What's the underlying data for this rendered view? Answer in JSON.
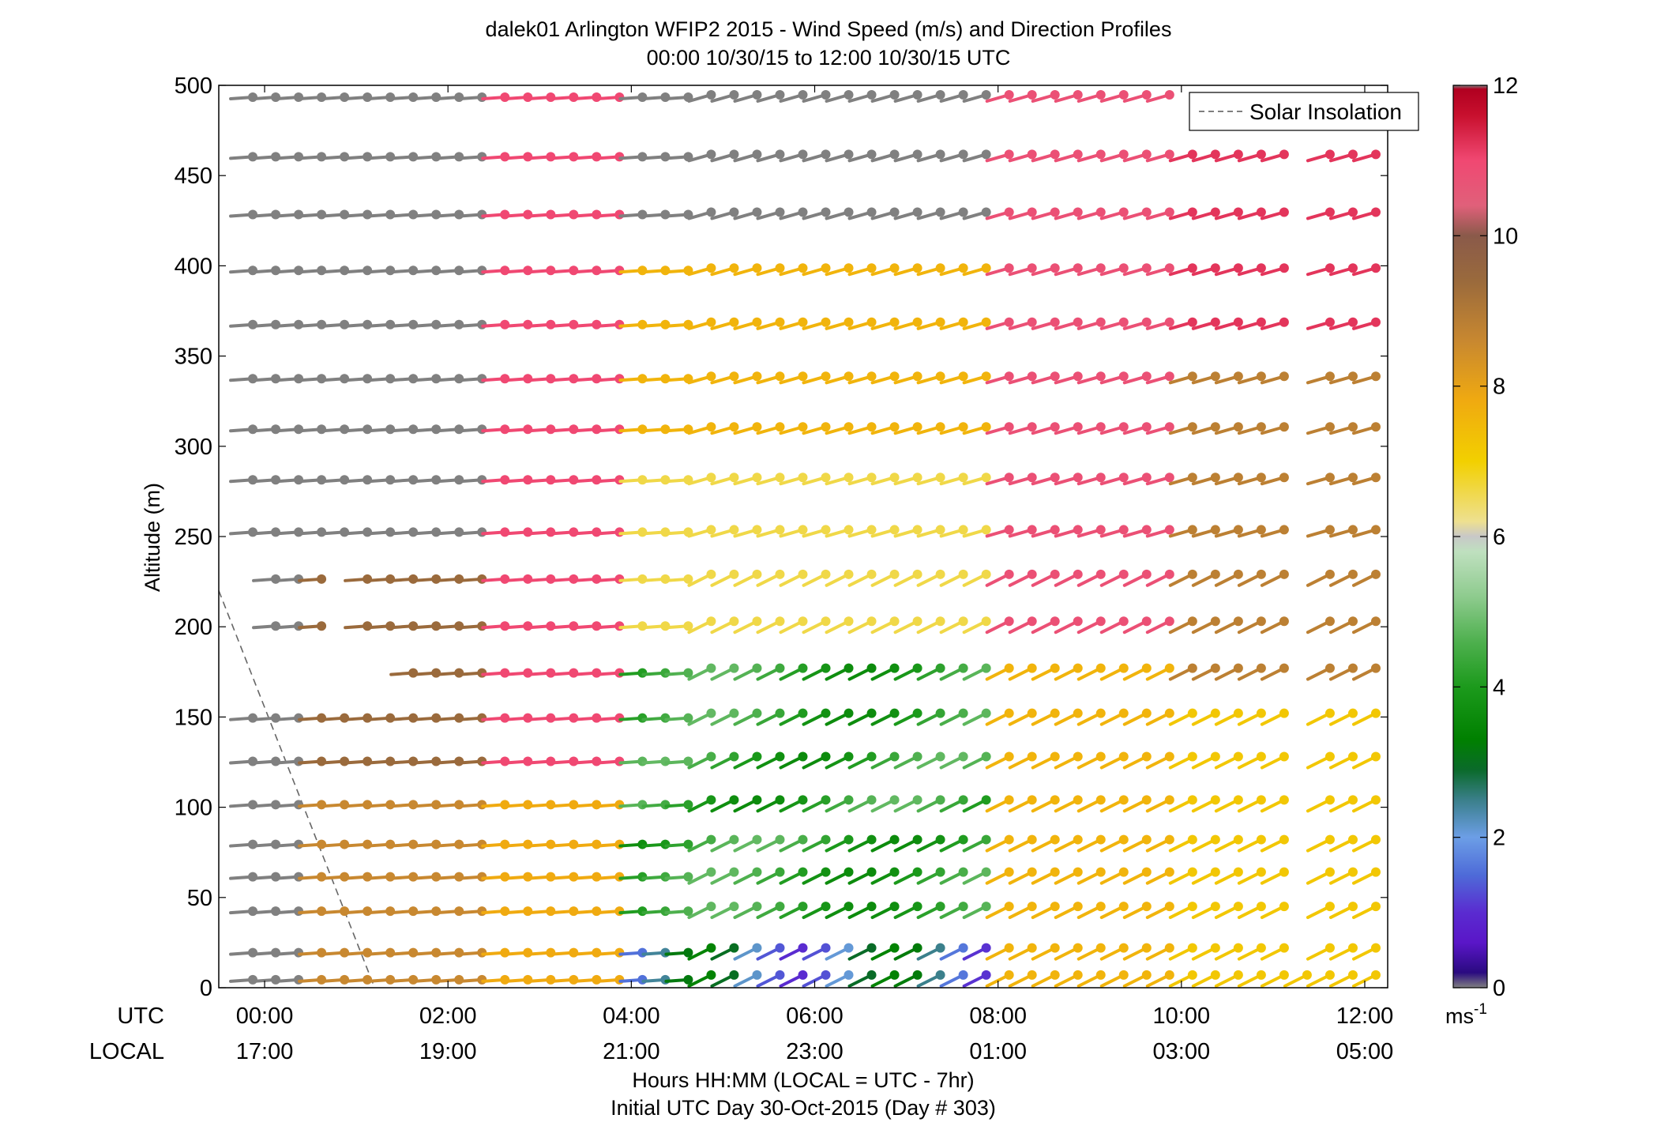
{
  "chart_data": {
    "type": "wind-barb-profile",
    "title": "dalek01 Arlington WFIP2 2015 - Wind Speed (m/s) and Direction Profiles",
    "subtitle": "00:00 10/30/15 to 12:00 10/30/15  UTC",
    "ylabel": "Altitude (m)",
    "xlabel": "Hours HH:MM  (LOCAL = UTC - 7hr)",
    "xlabel2": "Initial UTC Day 30-Oct-2015 (Day # 303)",
    "utc_row_label": "UTC",
    "local_row_label": "LOCAL",
    "ylim": [
      0,
      500
    ],
    "y_ticks": [
      0,
      50,
      100,
      150,
      200,
      250,
      300,
      350,
      400,
      450,
      500
    ],
    "xlim_hours": [
      -0.5,
      12.25
    ],
    "x_ticks_hours": [
      0,
      2,
      4,
      6,
      8,
      10,
      12
    ],
    "x_tick_utc_labels": [
      "00:00",
      "02:00",
      "04:00",
      "06:00",
      "08:00",
      "10:00",
      "12:00"
    ],
    "x_tick_local_labels": [
      "17:00",
      "19:00",
      "21:00",
      "23:00",
      "01:00",
      "03:00",
      "05:00"
    ],
    "legend": {
      "label": "Solar Insolation",
      "placement": "top-right"
    },
    "colorbar": {
      "min": 0,
      "max": 12,
      "ticks": [
        0,
        2,
        4,
        6,
        8,
        10,
        12
      ],
      "unit": "ms-1"
    },
    "solar_insolation_line": {
      "x_hours": [
        -0.5,
        1.2
      ],
      "y": [
        220,
        0
      ]
    },
    "altitudes": [
      4,
      19,
      42,
      61,
      79,
      101,
      125,
      149,
      174,
      200,
      226,
      252,
      281,
      309,
      337,
      367,
      397,
      428,
      460,
      493
    ],
    "time_step_hours": 0.25,
    "segments": [
      {
        "alt": 4,
        "start": -0.25,
        "end": 12.0,
        "gaps": []
      },
      {
        "alt": 19,
        "start": -0.25,
        "end": 12.0,
        "gaps": [
          [
            11.0,
            11.5
          ]
        ]
      },
      {
        "alt": 42,
        "start": -0.25,
        "end": 12.0,
        "gaps": [
          [
            11.0,
            11.5
          ]
        ]
      },
      {
        "alt": 61,
        "start": -0.25,
        "end": 12.0,
        "gaps": [
          [
            11.0,
            11.5
          ]
        ]
      },
      {
        "alt": 79,
        "start": -0.25,
        "end": 12.0,
        "gaps": [
          [
            11.0,
            11.5
          ]
        ]
      },
      {
        "alt": 101,
        "start": -0.25,
        "end": 12.0,
        "gaps": [
          [
            11.0,
            11.5
          ]
        ]
      },
      {
        "alt": 125,
        "start": -0.25,
        "end": 12.0,
        "gaps": [
          [
            11.0,
            11.5
          ]
        ]
      },
      {
        "alt": 149,
        "start": -0.25,
        "end": 12.0,
        "gaps": [
          [
            11.0,
            11.5
          ]
        ]
      },
      {
        "alt": 174,
        "start": 1.5,
        "end": 12.0,
        "gaps": [
          [
            11.0,
            11.5
          ]
        ]
      },
      {
        "alt": 200,
        "start": 0.0,
        "end": 12.0,
        "gaps": [
          [
            0.5,
            1.0
          ],
          [
            11.0,
            11.5
          ]
        ]
      },
      {
        "alt": 226,
        "start": 0.0,
        "end": 12.0,
        "gaps": [
          [
            0.5,
            1.0
          ],
          [
            11.0,
            11.5
          ]
        ]
      },
      {
        "alt": 252,
        "start": -0.25,
        "end": 12.0,
        "gaps": [
          [
            11.0,
            11.5
          ]
        ]
      },
      {
        "alt": 281,
        "start": -0.25,
        "end": 12.0,
        "gaps": [
          [
            11.0,
            11.5
          ]
        ]
      },
      {
        "alt": 309,
        "start": -0.25,
        "end": 12.0,
        "gaps": [
          [
            11.0,
            11.5
          ]
        ]
      },
      {
        "alt": 337,
        "start": -0.25,
        "end": 12.0,
        "gaps": [
          [
            11.0,
            11.5
          ]
        ]
      },
      {
        "alt": 367,
        "start": -0.25,
        "end": 12.0,
        "gaps": [
          [
            11.0,
            11.5
          ]
        ]
      },
      {
        "alt": 397,
        "start": -0.25,
        "end": 12.0,
        "gaps": [
          [
            11.0,
            11.5
          ]
        ]
      },
      {
        "alt": 428,
        "start": -0.25,
        "end": 12.0,
        "gaps": [
          [
            11.0,
            11.5
          ]
        ]
      },
      {
        "alt": 460,
        "start": -0.25,
        "end": 12.0,
        "gaps": [
          [
            11.0,
            11.5
          ]
        ]
      },
      {
        "alt": 493,
        "start": -0.25,
        "end": 9.75,
        "gaps": []
      }
    ]
  }
}
